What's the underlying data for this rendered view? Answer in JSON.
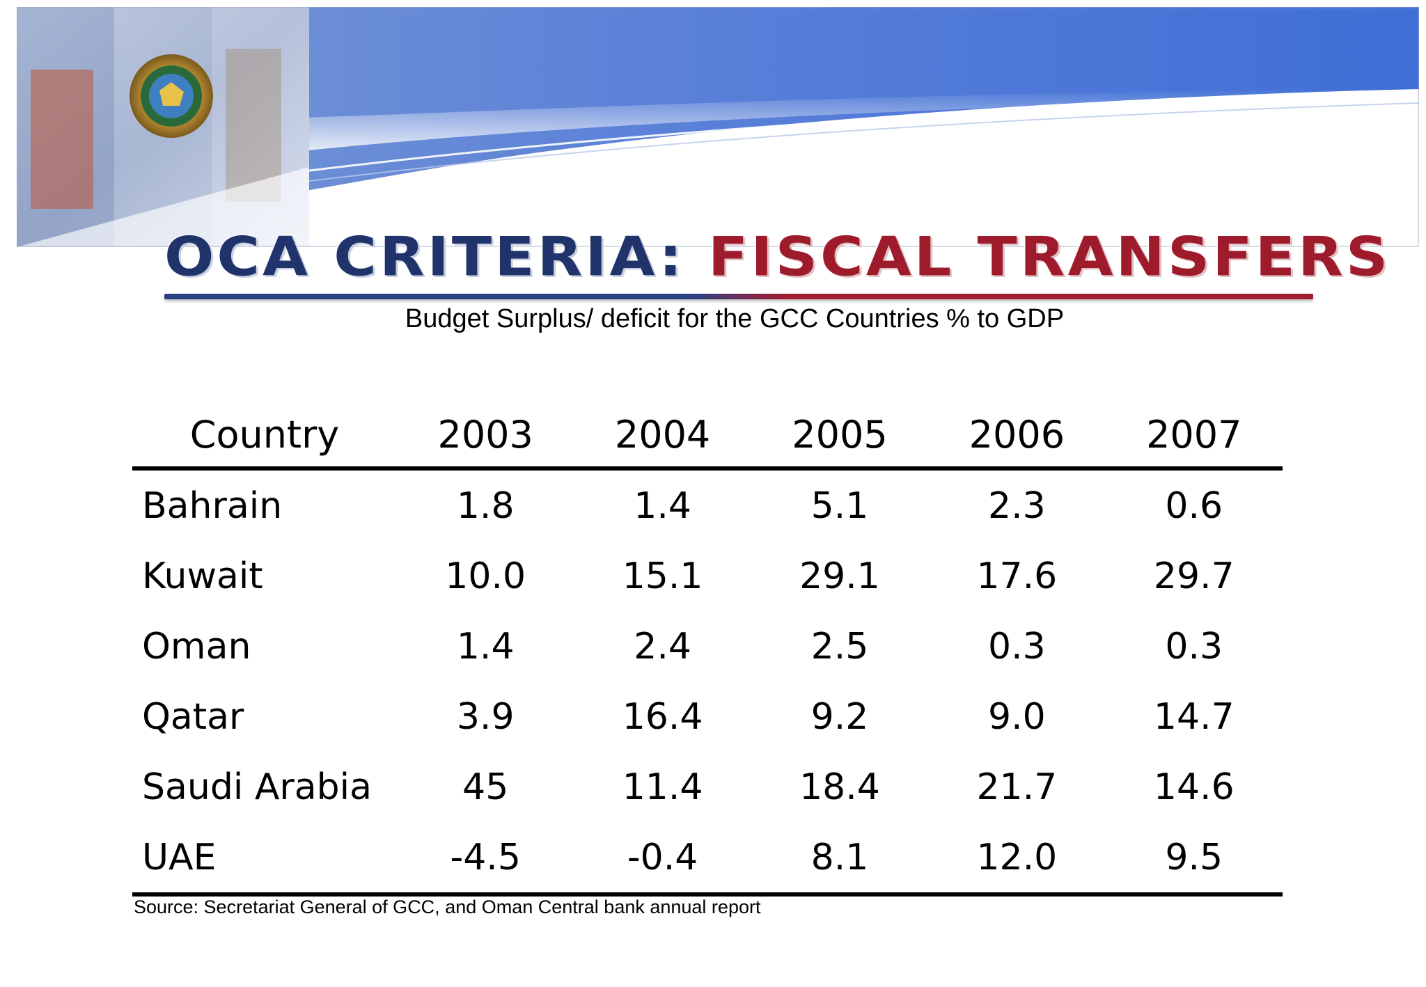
{
  "title": {
    "part1": "OCA Criteria:",
    "part2": "Fiscal Transfers"
  },
  "subtitle": "Budget Surplus/ deficit for the GCC Countries % to GDP",
  "table": {
    "headers": [
      "Country",
      "2003",
      "2004",
      "2005",
      "2006",
      "2007"
    ],
    "rows": [
      {
        "country": "Bahrain",
        "values": [
          "1.8",
          "1.4",
          "5.1",
          "2.3",
          "0.6"
        ]
      },
      {
        "country": "Kuwait",
        "values": [
          "10.0",
          "15.1",
          "29.1",
          "17.6",
          "29.7"
        ]
      },
      {
        "country": "Oman",
        "values": [
          "1.4",
          "2.4",
          "2.5",
          "0.3",
          "0.3"
        ]
      },
      {
        "country": "Qatar",
        "values": [
          "3.9",
          "16.4",
          "9.2",
          "9.0",
          "14.7"
        ]
      },
      {
        "country": "Saudi Arabia",
        "values": [
          "45",
          "11.4",
          "18.4",
          "21.7",
          "14.6"
        ]
      },
      {
        "country": "UAE",
        "values": [
          "-4.5",
          "-0.4",
          "8.1",
          "12.0",
          "9.5"
        ]
      }
    ]
  },
  "source": "Source: Secretariat General of GCC, and Oman Central bank annual report",
  "colors": {
    "title_blue": "#20336b",
    "title_red": "#9e1b2c",
    "banner_blue": "#4a74d0"
  }
}
